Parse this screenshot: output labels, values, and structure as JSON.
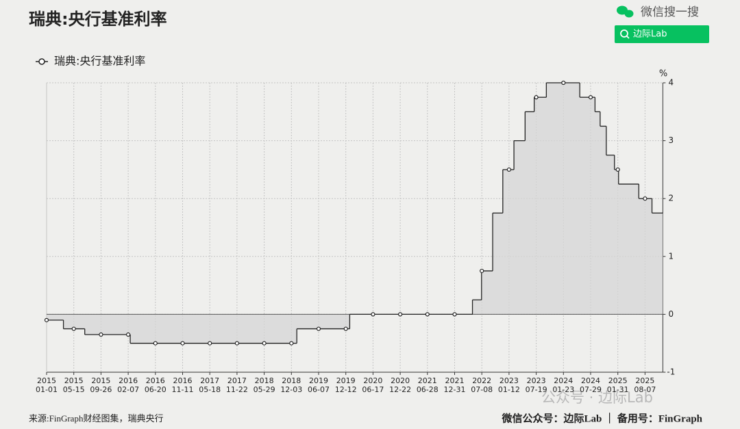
{
  "header": {
    "title": "瑞典:央行基准利率",
    "search_label": "微信搜一搜",
    "search_button": "边际Lab"
  },
  "chart_data": {
    "type": "line",
    "step": "after",
    "fill": true,
    "grid": true,
    "ylabel": "%",
    "x": [
      "2015-01-01",
      "2015-03-25",
      "2015-05-15",
      "2015-07-08",
      "2015-09-26",
      "2016-02-07",
      "2016-02-17",
      "2016-06-20",
      "2016-11-11",
      "2017-05-18",
      "2017-11-22",
      "2018-05-29",
      "2018-12-03",
      "2019-01-09",
      "2019-06-07",
      "2019-12-12",
      "2020-01-08",
      "2020-06-17",
      "2020-12-22",
      "2021-06-28",
      "2021-12-31",
      "2022-05-04",
      "2022-07-06",
      "2022-07-08",
      "2022-09-21",
      "2022-11-30",
      "2023-01-12",
      "2023-02-15",
      "2023-05-03",
      "2023-07-05",
      "2023-07-19",
      "2023-09-27",
      "2024-01-23",
      "2024-05-15",
      "2024-07-29",
      "2024-08-28",
      "2024-10-02",
      "2024-11-13",
      "2025-01-08",
      "2025-01-31",
      "2025-02-05",
      "2025-06-25",
      "2025-08-07",
      "2025-09-24"
    ],
    "series": [
      {
        "name": "瑞典:央行基准利率",
        "color": "#222222",
        "values": [
          -0.1,
          -0.25,
          -0.25,
          -0.35,
          -0.35,
          -0.35,
          -0.5,
          -0.5,
          -0.5,
          -0.5,
          -0.5,
          -0.5,
          -0.5,
          -0.25,
          -0.25,
          -0.25,
          0,
          0,
          0,
          0,
          0,
          0.25,
          0.75,
          0.75,
          1.75,
          2.5,
          2.5,
          3,
          3.5,
          3.75,
          3.75,
          4,
          4,
          3.75,
          3.75,
          3.5,
          3.25,
          2.75,
          2.5,
          2.5,
          2.25,
          2,
          2,
          1.75
        ]
      }
    ],
    "xlim": [
      "2015-01-01",
      "2025-12-08"
    ],
    "xticks": [
      {
        "value": "2015-01-01",
        "label": [
          "2015",
          "01-01"
        ]
      },
      {
        "value": "2015-05-15",
        "label": [
          "2015",
          "05-15"
        ]
      },
      {
        "value": "2015-09-26",
        "label": [
          "2015",
          "09-26"
        ]
      },
      {
        "value": "2016-02-07",
        "label": [
          "2016",
          "02-07"
        ]
      },
      {
        "value": "2016-06-20",
        "label": [
          "2016",
          "06-20"
        ]
      },
      {
        "value": "2016-11-11",
        "label": [
          "2016",
          "11-11"
        ]
      },
      {
        "value": "2017-05-18",
        "label": [
          "2017",
          "05-18"
        ]
      },
      {
        "value": "2017-11-22",
        "label": [
          "2017",
          "11-22"
        ]
      },
      {
        "value": "2018-05-29",
        "label": [
          "2018",
          "05-29"
        ]
      },
      {
        "value": "2018-12-03",
        "label": [
          "2018",
          "12-03"
        ]
      },
      {
        "value": "2019-06-07",
        "label": [
          "2019",
          "06-07"
        ]
      },
      {
        "value": "2019-12-12",
        "label": [
          "2019",
          "12-12"
        ]
      },
      {
        "value": "2020-06-17",
        "label": [
          "2020",
          "06-17"
        ]
      },
      {
        "value": "2020-12-22",
        "label": [
          "2020",
          "12-22"
        ]
      },
      {
        "value": "2021-06-28",
        "label": [
          "2021",
          "06-28"
        ]
      },
      {
        "value": "2021-12-31",
        "label": [
          "2021",
          "12-31"
        ]
      },
      {
        "value": "2022-07-08",
        "label": [
          "2022",
          "07-08"
        ]
      },
      {
        "value": "2023-01-12",
        "label": [
          "2023",
          "01-12"
        ]
      },
      {
        "value": "2023-07-19",
        "label": [
          "2023",
          "07-19"
        ]
      },
      {
        "value": "2024-01-23",
        "label": [
          "2024",
          "01-23"
        ]
      },
      {
        "value": "2024-07-29",
        "label": [
          "2024",
          "07-29"
        ]
      },
      {
        "value": "2025-01-31",
        "label": [
          "2025",
          "01-31"
        ]
      },
      {
        "value": "2025-08-07",
        "label": [
          "2025",
          "08-07"
        ]
      }
    ],
    "ylim": [
      -1,
      4
    ],
    "yticks": [
      -1,
      0,
      1,
      2,
      3,
      4
    ]
  },
  "footer": {
    "source": "来源:FinGraph财经图集，瑞典央行",
    "accounts": "微信公众号：边际Lab ｜ 备用号：FinGraph",
    "watermark": "公众号 · 边际Lab"
  }
}
